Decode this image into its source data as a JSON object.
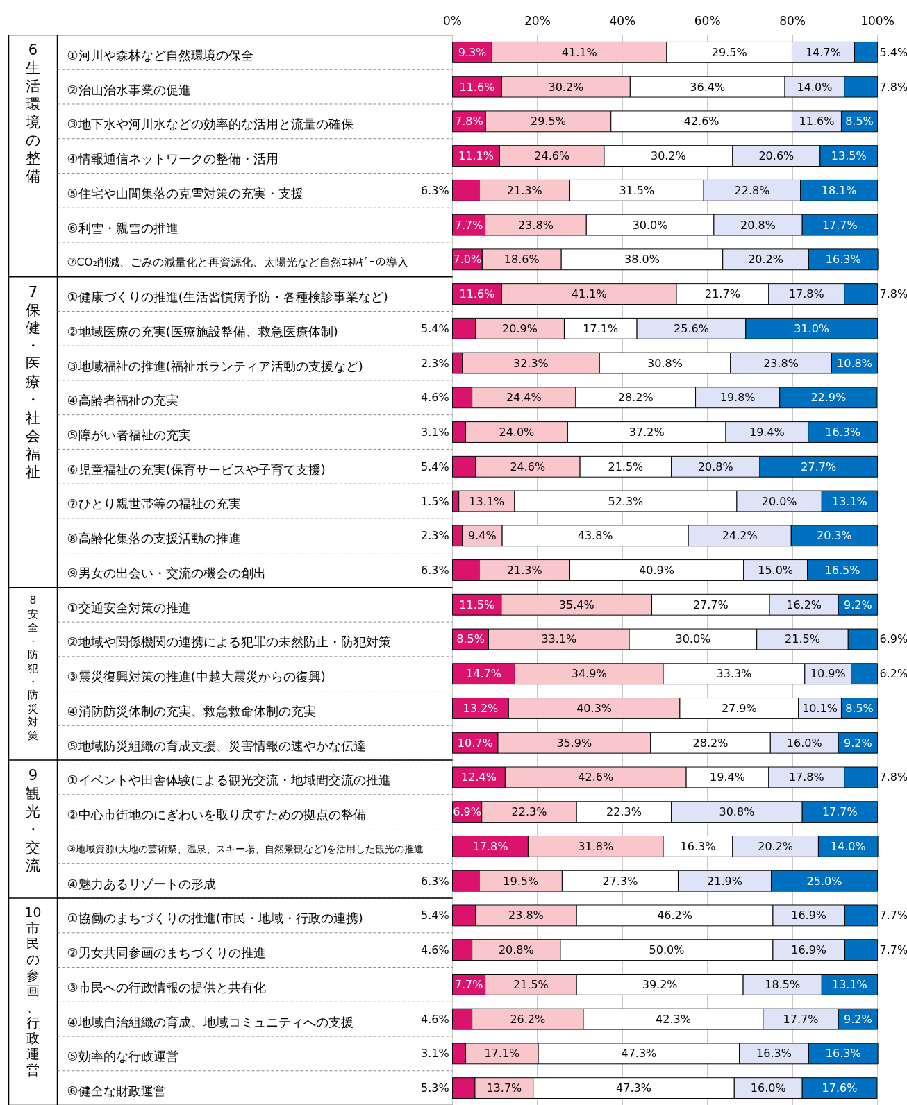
{
  "chart_data": {
    "type": "bar",
    "orientation": "horizontal",
    "stacked": true,
    "grid": "x",
    "tick_labels": "x",
    "xlim": [
      0,
      100
    ],
    "xticks": [
      {
        "value": 0,
        "label": "0%"
      },
      {
        "value": 20,
        "label": "20%"
      },
      {
        "value": 40,
        "label": "40%"
      },
      {
        "value": 60,
        "label": "60%"
      },
      {
        "value": 80,
        "label": "80%"
      },
      {
        "value": 100,
        "label": "100%"
      }
    ],
    "categories": [
      "①河川や森林など自然環境の保全",
      "②治山治水事業の促進",
      "③地下水や河川水などの効率的な活用と流量の確保",
      "④情報通信ネットワークの整備・活用",
      "⑤住宅や山間集落の克雪対策の充実・支援",
      "⑥利雪・親雪の推進",
      "⑦CO₂削減、ごみの減量化と再資源化、太陽光など自然ｴﾈﾙｷﾞｰの導入",
      "①健康づくりの推進(生活習慣病予防・各種検診事業など)",
      "②地域医療の充実(医療施設整備、救急医療体制)",
      "③地域福祉の推進(福祉ボランティア活動の支援など)",
      "④高齢者福祉の充実",
      "⑤障がい者福祉の充実",
      "⑥児童福祉の充実(保育サービスや子育て支援)",
      "⑦ひとり親世帯等の福祉の充実",
      "⑧高齢化集落の支援活動の推進",
      "⑨男女の出会い・交流の機会の創出",
      "①交通安全対策の推進",
      "②地域や関係機関の連携による犯罪の未然防止・防犯対策",
      "③震災復興対策の推進(中越大震災からの復興)",
      "④消防防災体制の充実、救急救命体制の充実",
      "⑤地域防災組織の育成支援、災害情報の速やかな伝達",
      "①イベントや田舎体験による観光交流・地域間交流の推進",
      "②中心市街地のにぎわいを取り戻すための拠点の整備",
      "③地域資源(大地の芸術祭、温泉、スキー場、自然景観など)を活用した観光の推進",
      "④魅力あるリゾートの形成",
      "①協働のまちづくりの推進(市民・地域・行政の連携)",
      "②男女共同参画のまちづくりの推進",
      "③市民への行政情報の提供と共有化",
      "④地域自治組織の育成、地域コミュニティへの支援",
      "⑤効率的な行政運営",
      "⑥健全な財政運営"
    ],
    "series": [
      {
        "color": "#dc136c",
        "values": [
          9.3,
          11.6,
          7.8,
          11.1,
          6.3,
          7.7,
          7.0,
          11.6,
          5.4,
          2.3,
          4.6,
          3.1,
          5.4,
          1.5,
          2.3,
          6.3,
          11.5,
          8.5,
          14.7,
          13.2,
          10.7,
          12.4,
          6.9,
          17.8,
          6.3,
          5.4,
          4.6,
          7.7,
          4.6,
          3.1,
          5.3
        ],
        "value_labels": [
          "9.3%",
          "11.6%",
          "7.8%",
          "11.1%",
          "6.3%",
          "7.7%",
          "7.0%",
          "11.6%",
          "5.4%",
          "2.3%",
          "4.6%",
          "3.1%",
          "5.4%",
          "1.5%",
          "2.3%",
          "6.3%",
          "11.5%",
          "8.5%",
          "14.7%",
          "13.2%",
          "10.7%",
          "12.4%",
          "6.9%",
          "17.8%",
          "6.3%",
          "5.4%",
          "4.6%",
          "7.7%",
          "4.6%",
          "3.1%",
          "5.3%"
        ]
      },
      {
        "color": "#f9c6cc",
        "values": [
          41.1,
          30.2,
          29.5,
          24.6,
          21.3,
          23.8,
          18.6,
          41.1,
          20.9,
          32.3,
          24.4,
          24.0,
          24.6,
          13.1,
          9.4,
          21.3,
          35.4,
          33.1,
          34.9,
          40.3,
          35.9,
          42.6,
          22.3,
          31.8,
          19.5,
          23.8,
          20.8,
          21.5,
          26.2,
          17.1,
          13.7
        ],
        "value_labels": [
          "41.1%",
          "30.2%",
          "29.5%",
          "24.6%",
          "21.3%",
          "23.8%",
          "18.6%",
          "41.1%",
          "20.9%",
          "32.3%",
          "24.4%",
          "24.0%",
          "24.6%",
          "13.1%",
          "9.4%",
          "21.3%",
          "35.4%",
          "33.1%",
          "34.9%",
          "40.3%",
          "35.9%",
          "42.6%",
          "22.3%",
          "31.8%",
          "19.5%",
          "23.8%",
          "20.8%",
          "21.5%",
          "26.2%",
          "17.1%",
          "13.7%"
        ]
      },
      {
        "color": "#ffffff",
        "values": [
          29.5,
          36.4,
          42.6,
          30.2,
          31.5,
          30.0,
          38.0,
          21.7,
          17.1,
          30.8,
          28.2,
          37.2,
          21.5,
          52.3,
          43.8,
          40.9,
          27.7,
          30.0,
          33.3,
          27.9,
          28.2,
          19.4,
          22.3,
          16.3,
          27.3,
          46.2,
          50.0,
          39.2,
          42.3,
          47.3,
          47.3
        ],
        "value_labels": [
          "29.5%",
          "36.4%",
          "42.6%",
          "30.2%",
          "31.5%",
          "30.0%",
          "38.0%",
          "21.7%",
          "17.1%",
          "30.8%",
          "28.2%",
          "37.2%",
          "21.5%",
          "52.3%",
          "43.8%",
          "40.9%",
          "27.7%",
          "30.0%",
          "33.3%",
          "27.9%",
          "28.2%",
          "19.4%",
          "22.3%",
          "16.3%",
          "27.3%",
          "46.2%",
          "50.0%",
          "39.2%",
          "42.3%",
          "47.3%",
          "47.3%"
        ]
      },
      {
        "color": "#dfe3f7",
        "values": [
          14.7,
          14.0,
          11.6,
          20.6,
          22.8,
          20.8,
          20.2,
          17.8,
          25.6,
          23.8,
          19.8,
          19.4,
          20.8,
          20.0,
          24.2,
          15.0,
          16.2,
          21.5,
          10.9,
          10.1,
          16.0,
          17.8,
          30.8,
          20.2,
          21.9,
          16.9,
          16.9,
          18.5,
          17.7,
          16.3,
          16.0
        ],
        "value_labels": [
          "14.7%",
          "14.0%",
          "11.6%",
          "20.6%",
          "22.8%",
          "20.8%",
          "20.2%",
          "17.8%",
          "25.6%",
          "23.8%",
          "19.8%",
          "19.4%",
          "20.8%",
          "20.0%",
          "24.2%",
          "15.0%",
          "16.2%",
          "21.5%",
          "10.9%",
          "10.1%",
          "16.0%",
          "17.8%",
          "30.8%",
          "20.2%",
          "21.9%",
          "16.9%",
          "16.9%",
          "18.5%",
          "17.7%",
          "16.3%",
          "16.0%"
        ]
      },
      {
        "color": "#0070c0",
        "values": [
          5.4,
          7.8,
          8.5,
          13.5,
          18.1,
          17.7,
          16.3,
          7.8,
          31.0,
          10.8,
          22.9,
          16.3,
          27.7,
          13.1,
          20.3,
          16.5,
          9.2,
          6.9,
          6.2,
          8.5,
          9.2,
          7.8,
          17.7,
          14.0,
          25.0,
          7.7,
          7.7,
          13.1,
          9.2,
          16.3,
          17.6
        ],
        "value_labels": [
          "5.4%",
          "7.8%",
          "8.5%",
          "13.5%",
          "18.1%",
          "17.7%",
          "16.3%",
          "7.8%",
          "31.0%",
          "10.8%",
          "22.9%",
          "16.3%",
          "27.7%",
          "13.1%",
          "20.3%",
          "16.5%",
          "9.2%",
          "6.9%",
          "6.2%",
          "8.5%",
          "9.2%",
          "7.8%",
          "17.7%",
          "14.0%",
          "25.0%",
          "7.7%",
          "7.7%",
          "13.1%",
          "9.2%",
          "16.3%",
          "17.6%"
        ]
      }
    ],
    "annotations": [
      "6 生活環境の整備",
      "7 保健・医療・社会福祉",
      "8 安全・防犯・防災対策",
      "9 観光・交流",
      "10 市民の参画、行政運営"
    ]
  }
}
